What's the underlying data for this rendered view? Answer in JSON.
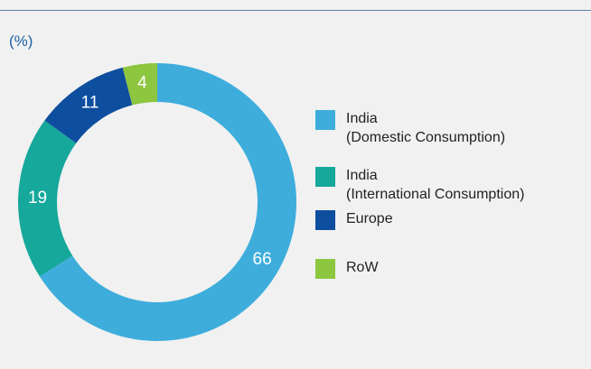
{
  "chart_data": {
    "type": "donut",
    "subtitle": "(%)",
    "categories": [
      "India\n(Domestic Consumption)",
      "India\n(International Consumption)",
      "Europe",
      "RoW"
    ],
    "values": [
      66,
      19,
      11,
      4
    ],
    "colors": [
      "#3eaddc",
      "#15a89b",
      "#0e4e9e",
      "#8dc63f"
    ]
  }
}
